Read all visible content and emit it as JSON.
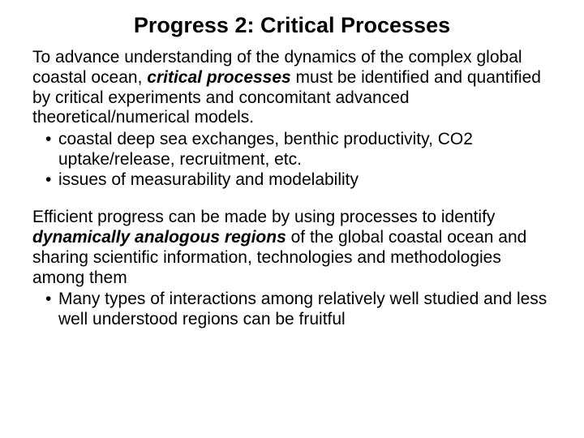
{
  "slide": {
    "title": "Progress 2: Critical Processes",
    "p1_a": "To advance understanding of the dynamics of the complex global coastal ocean, ",
    "p1_em": "critical processes",
    "p1_b": " must be identified and quantified by critical experiments and concomitant advanced theoretical/numerical models.",
    "b1": "coastal deep sea exchanges, benthic productivity, CO2 uptake/release, recruitment, etc.",
    "b2": "issues of measurability and modelability",
    "p2_a": "Efficient progress can be made by using processes to identify ",
    "p2_em": "dynamically analogous regions",
    "p2_b": " of the global coastal ocean and sharing scientific information, technologies and methodologies among them",
    "b3": "Many types of interactions among relatively well studied and less well understood regions can be fruitful"
  },
  "style": {
    "background_color": "#ffffff",
    "text_color": "#000000",
    "title_fontsize": 27,
    "body_fontsize": 21,
    "font_family": "Arial"
  }
}
